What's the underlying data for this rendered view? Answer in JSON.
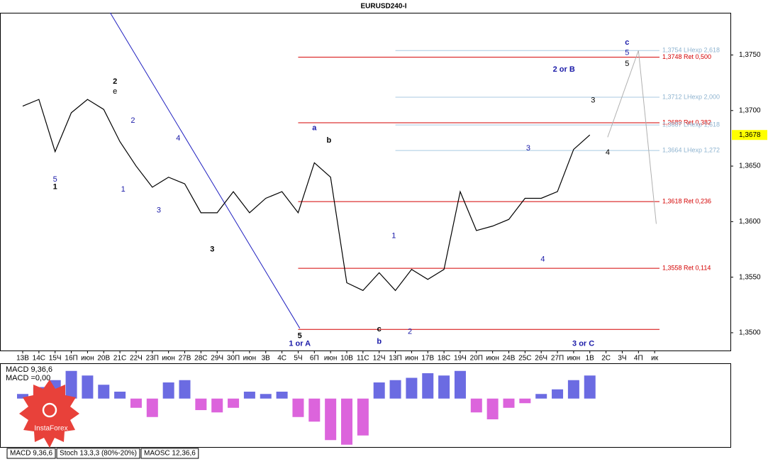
{
  "chart_data": [
    {
      "type": "line",
      "title": "EURUSD240-I",
      "categories": [
        "13В",
        "14С",
        "15Ч",
        "16П",
        "июн",
        "20В",
        "21С",
        "22Ч",
        "23П",
        "июн",
        "27В",
        "28С",
        "29Ч",
        "30П",
        "июн",
        "3В",
        "4С",
        "5Ч",
        "6П",
        "июн",
        "10В",
        "11С",
        "12Ч",
        "13П",
        "июн",
        "17В",
        "18С",
        "19Ч",
        "20П",
        "июн",
        "24В",
        "25С",
        "26Ч",
        "27П",
        "июн",
        "1В",
        "2С",
        "3Ч",
        "4П",
        "ик"
      ],
      "series": [
        {
          "name": "EURUSD",
          "color": "#000000",
          "values": [
            1.3704,
            1.371,
            1.3663,
            1.3698,
            1.371,
            1.3701,
            1.3672,
            1.365,
            1.3631,
            1.364,
            1.3634,
            1.3608,
            1.3608,
            1.3627,
            1.3608,
            1.3621,
            1.3627,
            1.3608,
            1.3653,
            1.364,
            1.3545,
            1.3538,
            1.3554,
            1.3538,
            1.3557,
            1.3548,
            1.3557,
            1.3627,
            1.3592,
            1.3596,
            1.3602,
            1.3621,
            1.3621,
            1.3627,
            1.3665,
            1.3678,
            null,
            null,
            null,
            null
          ]
        }
      ],
      "ylim": [
        1.3484,
        1.3788
      ],
      "yticks": [
        {
          "value": 1.375,
          "label": "1,3750"
        },
        {
          "value": 1.37,
          "label": "1,3700"
        },
        {
          "value": 1.365,
          "label": "1,3650"
        },
        {
          "value": 1.36,
          "label": "1,3600"
        },
        {
          "value": 1.355,
          "label": "1,3550"
        },
        {
          "value": 1.35,
          "label": "1,3500"
        }
      ],
      "current_price": {
        "value": 1.3678,
        "label": "1,3678"
      },
      "levels": [
        {
          "value": 1.3754,
          "label": "1,3754 LHexp 2,618",
          "color": "#a9c9e2",
          "start": 23
        },
        {
          "value": 1.3748,
          "label": "1,3748 Ret 0,500",
          "color": "#d40000",
          "start": 17
        },
        {
          "value": 1.3712,
          "label": "1,3712 LHexp 2,000",
          "color": "#a9c9e2",
          "start": 23
        },
        {
          "value": 1.3689,
          "label": "1,3689 Ret 0,382",
          "color": "#d40000",
          "start": 17
        },
        {
          "value": 1.3687,
          "label": "1,3687 LHexp 1,618",
          "color": "#a9c9e2",
          "start": 23
        },
        {
          "value": 1.3664,
          "label": "1,3664 LHexp 1,272",
          "color": "#a9c9e2",
          "start": 23
        },
        {
          "value": 1.3618,
          "label": "1,3618 Ret 0,236",
          "color": "#d40000",
          "start": 17
        },
        {
          "value": 1.3558,
          "label": "1,3558 Ret 0,114",
          "color": "#d40000",
          "start": 17
        },
        {
          "value": 1.3503,
          "color": "#d40000",
          "start": 17
        }
      ],
      "trendlines": [
        {
          "x": [
            5.4,
            17.1
          ],
          "y": [
            1.3788,
            1.3504
          ],
          "color": "#2020c0"
        },
        {
          "x": [
            36.1,
            38,
            39.1
          ],
          "y": [
            1.3676,
            1.3754,
            1.3598
          ],
          "color": "#b0b0b0"
        }
      ],
      "annotations": [
        {
          "text": "1 or A",
          "x": 17.1,
          "y": 1.349,
          "color": "#1a1aa8",
          "bold": true
        },
        {
          "text": "2 or B",
          "x": 33.4,
          "y": 1.3737,
          "color": "#1a1aa8",
          "bold": true
        },
        {
          "text": "3 or C",
          "x": 34.6,
          "y": 1.349,
          "color": "#1a1aa8",
          "bold": true
        },
        {
          "text": "c",
          "x": 37.3,
          "y": 1.3761,
          "color": "#1a1aa8",
          "bold": true
        },
        {
          "text": "5",
          "x": 37.3,
          "y": 1.3752,
          "color": "#1a1aa8",
          "bold": false
        },
        {
          "text": "5",
          "x": 37.3,
          "y": 1.3742,
          "color": "#000000",
          "bold": false
        },
        {
          "text": "3",
          "x": 35.2,
          "y": 1.3709,
          "color": "#000000",
          "bold": false
        },
        {
          "text": "4",
          "x": 36.1,
          "y": 1.3662,
          "color": "#000000",
          "bold": false
        },
        {
          "text": "a",
          "x": 18.0,
          "y": 1.3684,
          "color": "#1a1aa8",
          "bold": true
        },
        {
          "text": "b",
          "x": 18.9,
          "y": 1.3673,
          "color": "#000000",
          "bold": true
        },
        {
          "text": "5",
          "x": 17.1,
          "y": 1.3497,
          "color": "#000000",
          "bold": true
        },
        {
          "text": "3",
          "x": 31.2,
          "y": 1.3666,
          "color": "#1a1aa8",
          "bold": false
        },
        {
          "text": "4",
          "x": 32.1,
          "y": 1.3566,
          "color": "#1a1aa8",
          "bold": false
        },
        {
          "text": "1",
          "x": 22.9,
          "y": 1.3587,
          "color": "#1a1aa8",
          "bold": false
        },
        {
          "text": "2",
          "x": 23.9,
          "y": 1.3501,
          "color": "#1a1aa8",
          "bold": false
        },
        {
          "text": "b",
          "x": 22.0,
          "y": 1.3492,
          "color": "#1a1aa8",
          "bold": true
        },
        {
          "text": "c",
          "x": 22.0,
          "y": 1.3503,
          "color": "#000000",
          "bold": true
        },
        {
          "text": "4",
          "x": 9.6,
          "y": 1.3675,
          "color": "#1a1aa8",
          "bold": false
        },
        {
          "text": "2",
          "x": 6.8,
          "y": 1.3691,
          "color": "#1a1aa8",
          "bold": false
        },
        {
          "text": "3",
          "x": 8.4,
          "y": 1.361,
          "color": "#1a1aa8",
          "bold": false
        },
        {
          "text": "1",
          "x": 6.2,
          "y": 1.3629,
          "color": "#1a1aa8",
          "bold": false
        },
        {
          "text": "5",
          "x": 2.0,
          "y": 1.3638,
          "color": "#1a1aa8",
          "bold": false
        },
        {
          "text": "1",
          "x": 2.0,
          "y": 1.3631,
          "color": "#000000",
          "bold": true
        },
        {
          "text": "3",
          "x": 11.7,
          "y": 1.3575,
          "color": "#000000",
          "bold": true
        },
        {
          "text": "2",
          "x": 5.7,
          "y": 1.3726,
          "color": "#000000",
          "bold": true
        },
        {
          "text": "e",
          "x": 5.7,
          "y": 1.3717,
          "color": "#000000",
          "bold": false
        }
      ]
    },
    {
      "type": "histogram",
      "title": "MACD 9,36,6",
      "subtitle": "MACD =0,00",
      "values": [
        0.0002,
        0.0005,
        0.0008,
        0.0012,
        0.001,
        0.0006,
        0.0003,
        -0.0004,
        -0.0008,
        0.0007,
        0.0008,
        -0.0005,
        -0.0006,
        -0.0004,
        0.0003,
        0.0002,
        0.0003,
        -0.0008,
        -0.001,
        -0.0018,
        -0.002,
        -0.0016,
        0.0007,
        0.0008,
        0.0009,
        0.0011,
        0.001,
        0.0012,
        -0.0006,
        -0.0009,
        -0.0004,
        -0.0002,
        0.0002,
        0.0004,
        0.0008,
        0.001,
        null,
        null,
        null,
        null
      ],
      "pos_color": "#3a3ad8",
      "neg_color": "#d030d0",
      "ylim": [
        -0.0021,
        0.0015
      ]
    }
  ],
  "ui": {
    "tabs": [
      "MACD 9,36,6",
      "Stoch 13,3,3 (80%-20%)",
      "MAOSC 12,36,6"
    ],
    "logo": "InstaForex"
  }
}
